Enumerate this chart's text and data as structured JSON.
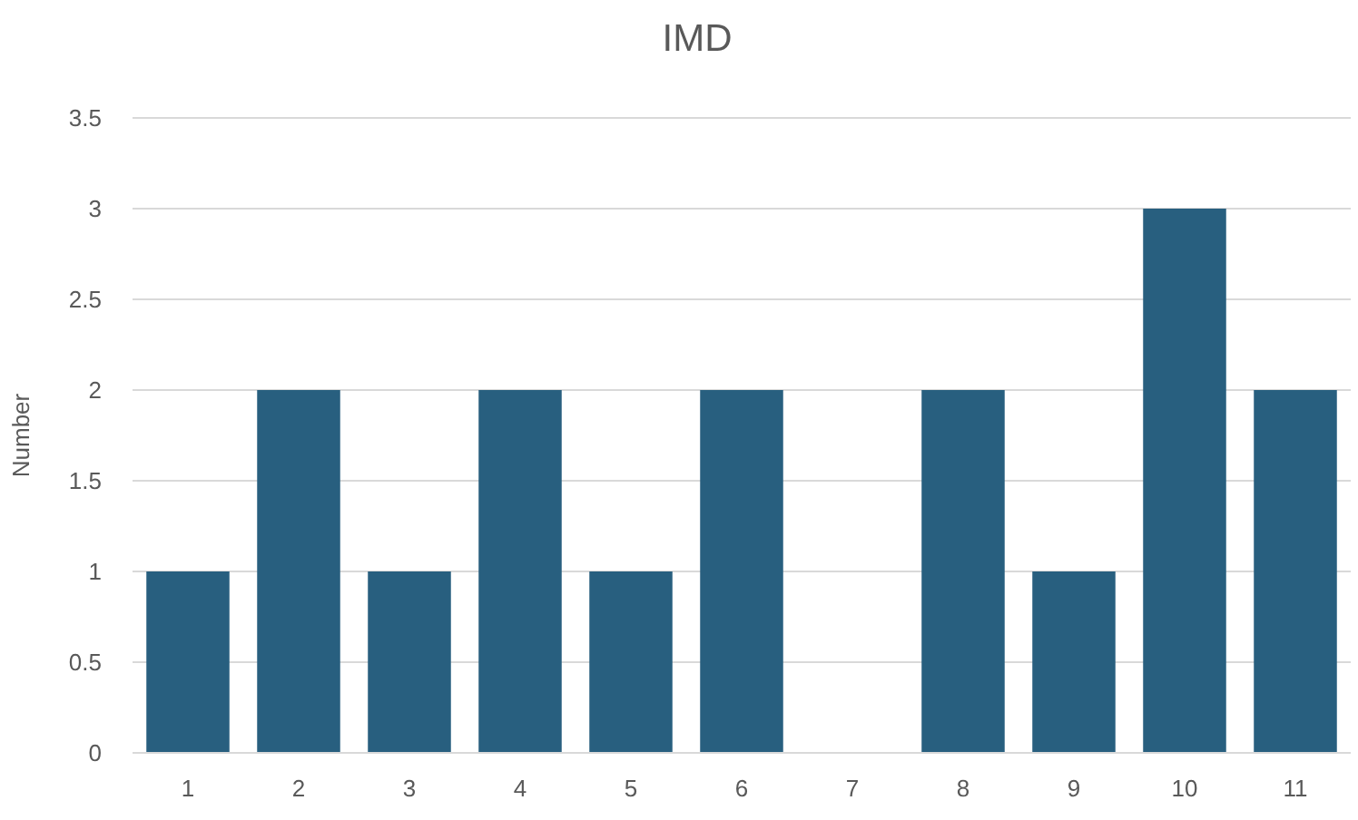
{
  "chart_data": {
    "type": "bar",
    "title": "IMD",
    "ylabel": "Number",
    "categories": [
      "1",
      "2",
      "3",
      "4",
      "5",
      "6",
      "7",
      "8",
      "9",
      "10",
      "11"
    ],
    "values": [
      1,
      2,
      1,
      2,
      1,
      2,
      0,
      2,
      1,
      3,
      2
    ],
    "color": "#285f7f",
    "ylim": [
      0,
      3.5
    ],
    "yticks": [
      0,
      0.5,
      1,
      1.5,
      2,
      2.5,
      3,
      3.5
    ],
    "grid": "y"
  }
}
